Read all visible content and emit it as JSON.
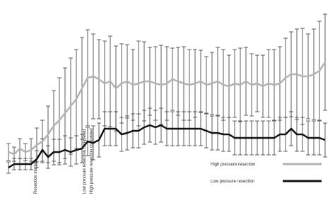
{
  "chart_data": {
    "type": "line",
    "categories": [
      null,
      null,
      null,
      null,
      null,
      null,
      null,
      null,
      null,
      null,
      null,
      null,
      null,
      null,
      null,
      null,
      null,
      null,
      null,
      null,
      null,
      null,
      null,
      null,
      null,
      null,
      null,
      null,
      null,
      null,
      null,
      null,
      null,
      null,
      null,
      null,
      null,
      null,
      null,
      null,
      null,
      null,
      null,
      null,
      null,
      null,
      null,
      null,
      null,
      null,
      null,
      null,
      null,
      null,
      null,
      null,
      null
    ],
    "ylim": [
      0,
      100
    ],
    "series": [
      {
        "name": "High pressure resection",
        "color": "#b3b3b3",
        "values": [
          12.5,
          11,
          15,
          12.5,
          14,
          17.5,
          20,
          25,
          31,
          35,
          40,
          45,
          50,
          57.5,
          65,
          66,
          64,
          61,
          62.5,
          57.5,
          61,
          62.5,
          60,
          61,
          62.5,
          62.5,
          61,
          60,
          61,
          64,
          62.5,
          61,
          60,
          61,
          62.5,
          60,
          61,
          62.5,
          60,
          59,
          61,
          60,
          62.5,
          60,
          61,
          59,
          61,
          60,
          61,
          65,
          67.5,
          67.5,
          66,
          66,
          67.5,
          70,
          76
        ],
        "errors": [
          6,
          5,
          7,
          6,
          8,
          12,
          15,
          20,
          25,
          30,
          32,
          34,
          35,
          36,
          34,
          30,
          28,
          30,
          32,
          30,
          28,
          26,
          25,
          30,
          28,
          24,
          26,
          28,
          26,
          22,
          24,
          26,
          25,
          24,
          22,
          20,
          22,
          24,
          25,
          22,
          24,
          26,
          24,
          22,
          20,
          22,
          24,
          25,
          26,
          28,
          30,
          32,
          34,
          30,
          32,
          35,
          34
        ]
      },
      {
        "name": "Low  pressure resection",
        "color": "#111111",
        "values": [
          1.5,
          4,
          4,
          4,
          4,
          7.5,
          14,
          9,
          12.5,
          12.5,
          14,
          12.5,
          14,
          15,
          20,
          19,
          21,
          29,
          29,
          29,
          25,
          26,
          27.5,
          27.5,
          30,
          31.5,
          30,
          31.5,
          29,
          29,
          29,
          29,
          29,
          29,
          29,
          27.5,
          26,
          26,
          25,
          25,
          22.5,
          22.5,
          22.5,
          22.5,
          22.5,
          22.5,
          22.5,
          22.5,
          25,
          25,
          29,
          25,
          25,
          22.5,
          22.5,
          22.5,
          21
        ],
        "errors": [
          4,
          4,
          4,
          4,
          4,
          6,
          8,
          8,
          9,
          9,
          10,
          10,
          10,
          10,
          10,
          12,
          12,
          12,
          12,
          12,
          12,
          12,
          12,
          12,
          12,
          12,
          12,
          12,
          12,
          12,
          12,
          12,
          12,
          12,
          12,
          12,
          12,
          12,
          12,
          12,
          12,
          12,
          12,
          12,
          12,
          12,
          12,
          12,
          12,
          12,
          12,
          12,
          12,
          12,
          12,
          12,
          12
        ]
      }
    ],
    "annotations": [
      "Resection started",
      "Low pressure resection completed",
      "High pressure resection completed"
    ]
  }
}
